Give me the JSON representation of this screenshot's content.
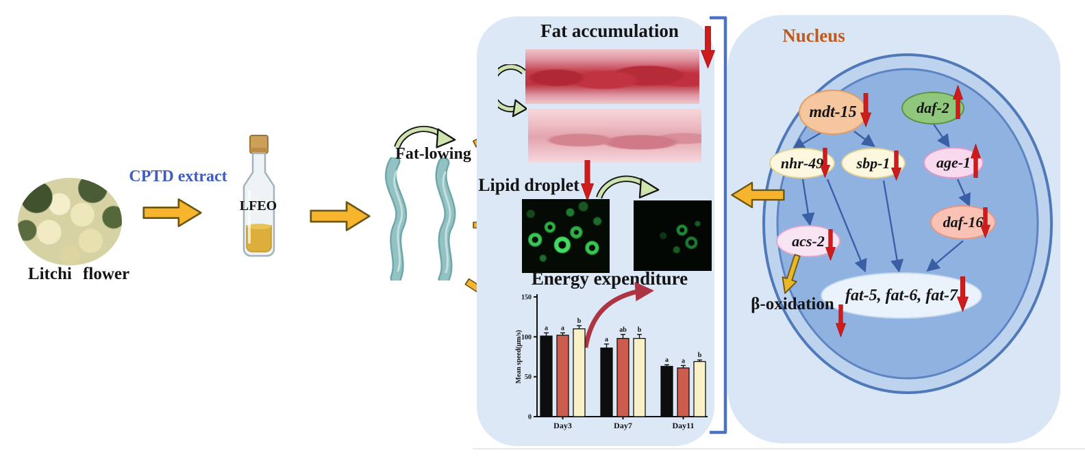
{
  "left": {
    "flower_caption": "Litchi flower",
    "extract_label": "CPTD extract",
    "bottle_label": "LFEO"
  },
  "middle": {
    "fat_lowing_label": "Fat-lowing",
    "fat_accumulation_title": "Fat accumulation",
    "lipid_droplet_title": "Lipid droplet",
    "energy_expenditure_title": "Energy expenditure"
  },
  "nucleus": {
    "title": "Nucleus",
    "beta_oxidation_label": "β-oxidation",
    "genes": [
      {
        "label": "mdt-15",
        "regulation": "down"
      },
      {
        "label": "daf-2",
        "regulation": "up"
      },
      {
        "label": "nhr-49",
        "regulation": "down"
      },
      {
        "label": "sbp-1",
        "regulation": "down"
      },
      {
        "label": "age-1",
        "regulation": "up"
      },
      {
        "label": "daf-16",
        "regulation": "down"
      },
      {
        "label": "acs-2",
        "regulation": "down"
      },
      {
        "label": "fat-5, fat-6, fat-7",
        "regulation": "down"
      }
    ]
  },
  "colors": {
    "panel_bg": "#dce8f6",
    "nucleus_panel_bg": "#d9e6f5",
    "nucleus_inner": "#8fb2e0",
    "nucleus_ring": "#bdd3ee",
    "nucleus_border": "#4f79b8",
    "yellow_arrow": "#f6b52d",
    "red_arrow": "#ce1c1c",
    "blue_connector": "#3a5fa4",
    "bracket": "#4a71c2",
    "extract_text": "#3f5cbe",
    "nucleus_title_text": "#c05a1d",
    "worm": "#8fbcbe",
    "green_arrow_fill": "#cfe3ae"
  },
  "chart_data": {
    "type": "bar",
    "title": "Energy expenditure",
    "ylabel": "Mean speed(μm/s)",
    "categories": [
      "Day3",
      "Day7",
      "Day11"
    ],
    "series": [
      {
        "name": "black",
        "color": "#0d0d0d",
        "values": [
          101,
          86,
          63
        ],
        "errors": [
          4,
          5,
          2
        ],
        "sig_letters": [
          "a",
          "a",
          "a"
        ]
      },
      {
        "name": "red",
        "color": "#cd5b4e",
        "values": [
          102,
          98,
          61
        ],
        "errors": [
          3,
          5,
          3
        ],
        "sig_letters": [
          "a",
          "ab",
          "a"
        ]
      },
      {
        "name": "cream",
        "color": "#f9f0c8",
        "values": [
          110,
          98,
          69
        ],
        "errors": [
          4,
          5,
          2
        ],
        "sig_letters": [
          "b",
          "b",
          "b"
        ]
      }
    ],
    "ylim": [
      0,
      150
    ],
    "yticks": [
      0,
      50,
      100,
      150
    ],
    "grid": false,
    "legend": "none"
  }
}
